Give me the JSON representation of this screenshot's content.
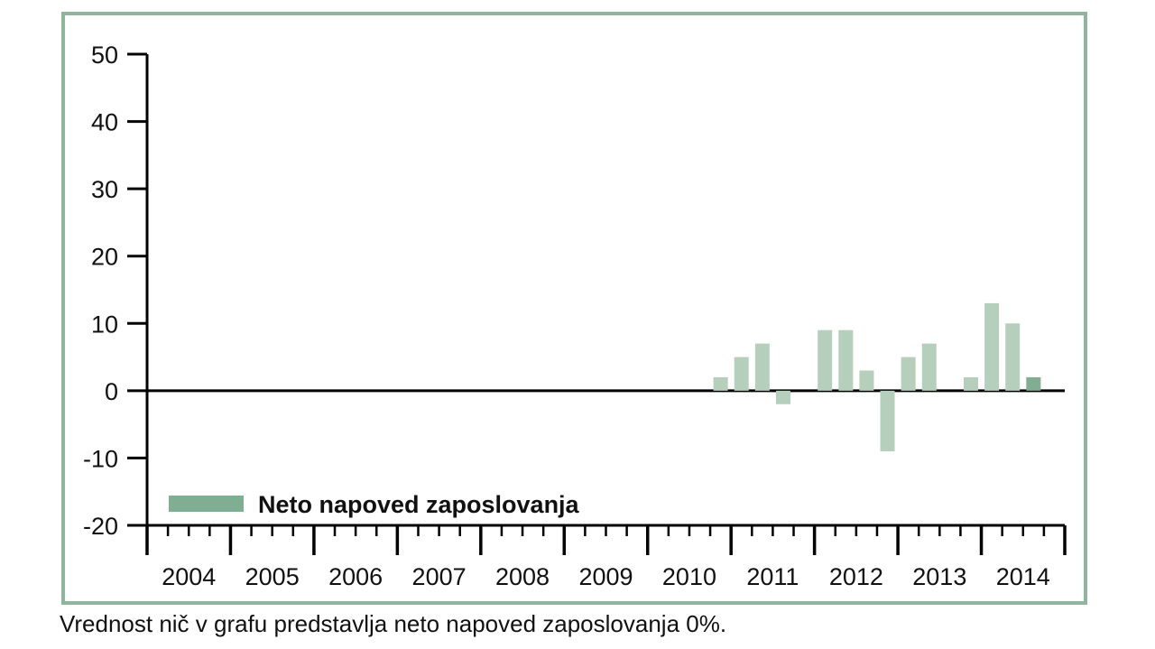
{
  "chart_data": {
    "type": "bar",
    "title": "",
    "xlabel": "",
    "ylabel": "",
    "ylim": [
      -20,
      50
    ],
    "yticks": [
      50,
      40,
      30,
      20,
      10,
      0,
      -10,
      -20
    ],
    "years": [
      "2004",
      "2005",
      "2006",
      "2007",
      "2008",
      "2009",
      "2010",
      "2011",
      "2012",
      "2013",
      "2014"
    ],
    "quarters_per_year": 4,
    "series": [
      {
        "name": "Neto napoved zaposlovanja",
        "points": [
          {
            "year": "2010",
            "quarter": 4,
            "value": 2
          },
          {
            "year": "2011",
            "quarter": 1,
            "value": 5
          },
          {
            "year": "2011",
            "quarter": 2,
            "value": 7
          },
          {
            "year": "2011",
            "quarter": 3,
            "value": -2
          },
          {
            "year": "2012",
            "quarter": 1,
            "value": 9
          },
          {
            "year": "2012",
            "quarter": 2,
            "value": 9
          },
          {
            "year": "2012",
            "quarter": 3,
            "value": 3
          },
          {
            "year": "2012",
            "quarter": 4,
            "value": -9
          },
          {
            "year": "2013",
            "quarter": 1,
            "value": 5
          },
          {
            "year": "2013",
            "quarter": 2,
            "value": 7
          },
          {
            "year": "2013",
            "quarter": 4,
            "value": 2
          },
          {
            "year": "2014",
            "quarter": 1,
            "value": 13
          },
          {
            "year": "2014",
            "quarter": 2,
            "value": 10
          },
          {
            "year": "2014",
            "quarter": 3,
            "value": 2,
            "highlight": true
          }
        ]
      }
    ],
    "legend": {
      "label": "Neto napoved zaposlovanja",
      "placement": "bottom-left"
    },
    "colors": {
      "bar": "#b6cfbd",
      "bar_highlight": "#7fae92",
      "legend_swatch": "#7fae92",
      "frame": "#8fb59c",
      "axis": "#000000"
    },
    "grid": false
  },
  "footnote": "Vrednost nič v grafu predstavlja neto napoved zaposlovanja 0%."
}
